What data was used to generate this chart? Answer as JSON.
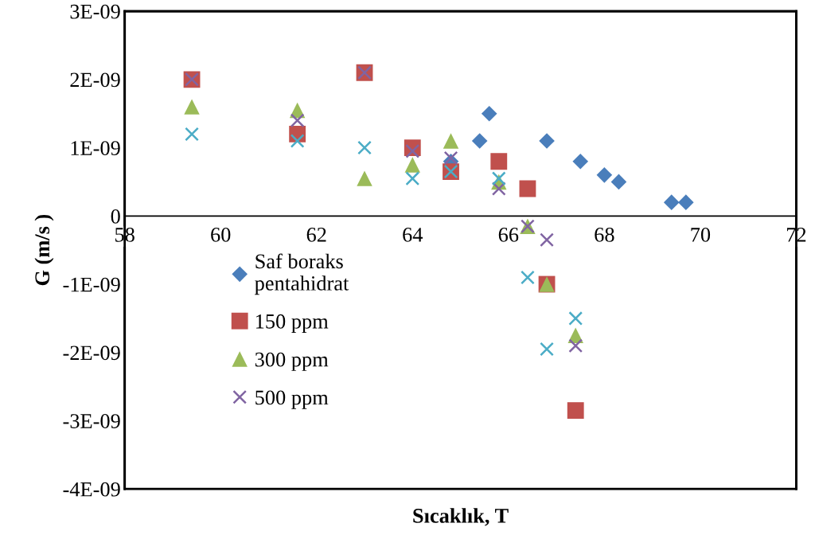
{
  "chart_data": {
    "type": "scatter",
    "xlabel": "Sıcaklık, T",
    "ylabel": "G (m/s )",
    "xlim": [
      58,
      72
    ],
    "xticks": [
      58,
      60,
      62,
      64,
      66,
      68,
      70,
      72
    ],
    "ylim": [
      -4e-09,
      3e-09
    ],
    "yticks": [
      {
        "value": -4e-09,
        "label": "-4E-09"
      },
      {
        "value": -3e-09,
        "label": "-3E-09"
      },
      {
        "value": -2e-09,
        "label": "-2E-09"
      },
      {
        "value": -1e-09,
        "label": "-1E-09"
      },
      {
        "value": 0,
        "label": "0"
      },
      {
        "value": 1e-09,
        "label": "1E-09"
      },
      {
        "value": 2e-09,
        "label": "2E-09"
      },
      {
        "value": 3e-09,
        "label": "3E-09"
      }
    ],
    "grid": false,
    "legend": "left",
    "series": [
      {
        "name": "Saf boraks\npentahidrat",
        "color": "#4a7ebb",
        "marker": "diamond",
        "x": [
          64.8,
          65.4,
          65.6,
          66.8,
          67.5,
          68.0,
          68.3,
          69.4,
          69.7
        ],
        "values": [
          8e-10,
          1.1e-09,
          1.5e-09,
          1.1e-09,
          8e-10,
          6e-10,
          5e-10,
          2e-10,
          2e-10
        ]
      },
      {
        "name": "150 ppm",
        "color": "#c0504d",
        "marker": "square",
        "x": [
          59.4,
          61.6,
          63.0,
          64.0,
          64.8,
          65.8,
          66.4,
          66.8,
          67.4
        ],
        "values": [
          2e-09,
          1.2e-09,
          2.1e-09,
          1e-09,
          6.5e-10,
          8e-10,
          4e-10,
          -1e-09,
          -2.85e-09
        ]
      },
      {
        "name": "300 ppm",
        "color": "#9bbb59",
        "marker": "triangle",
        "x": [
          59.4,
          61.6,
          63.0,
          64.0,
          64.8,
          65.8,
          66.4,
          66.8,
          67.4
        ],
        "values": [
          1.6e-09,
          1.55e-09,
          5.5e-10,
          7.5e-10,
          1.1e-09,
          5e-10,
          -1.5e-10,
          -1e-09,
          -1.75e-09
        ]
      },
      {
        "name": "500 ppm",
        "color": "#8064a2",
        "marker": "cross",
        "x": [
          59.4,
          61.6,
          63.0,
          64.0,
          64.8,
          65.8,
          66.4,
          66.8,
          67.4
        ],
        "values": [
          2e-09,
          1.4e-09,
          2.1e-09,
          9.5e-10,
          8.5e-10,
          4e-10,
          -1.5e-10,
          -3.5e-10,
          -1.9e-09
        ]
      },
      {
        "color": "#4bacc6",
        "marker": "cross",
        "x": [
          59.4,
          61.6,
          63.0,
          64.0,
          64.8,
          65.8,
          66.4,
          66.8,
          67.4
        ],
        "values": [
          1.2e-09,
          1.1e-09,
          1e-09,
          5.5e-10,
          6.5e-10,
          5.5e-10,
          -9e-10,
          -1.95e-09,
          -1.5e-09
        ]
      }
    ]
  }
}
